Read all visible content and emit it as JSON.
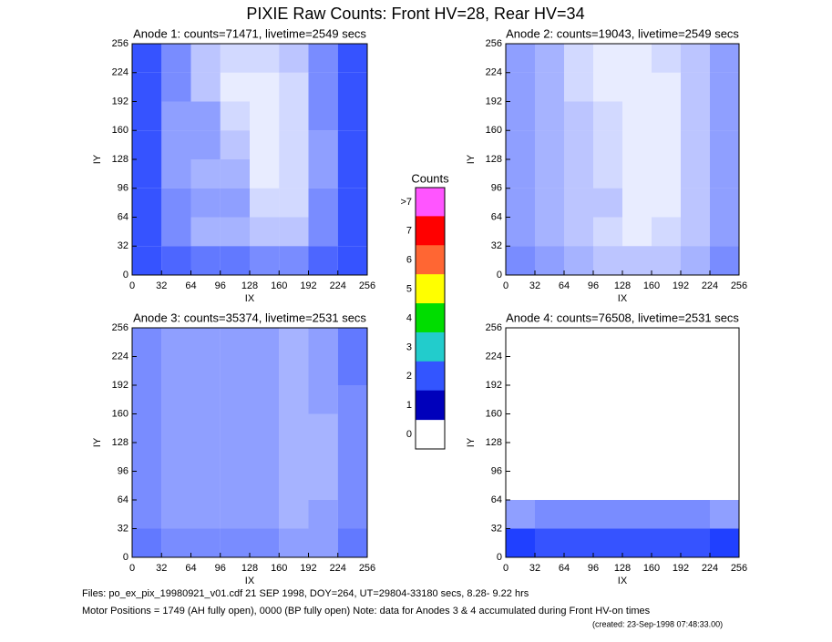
{
  "title": "PIXIE Raw Counts:  Front HV=28, Rear HV=34",
  "colorbar": {
    "title": "Counts",
    "labels": [
      ">7",
      "7",
      "6",
      "5",
      "4",
      "3",
      "2",
      "1",
      "0"
    ],
    "colors": [
      "#ff55ff",
      "#ff0000",
      "#ff6633",
      "#ffff00",
      "#00dd00",
      "#22cccc",
      "#3355ff",
      "#0000bb",
      "#ffffff"
    ]
  },
  "footer": [
    "Files: po_ex_pix_19980921_v01.cdf    21 SEP 1998, DOY=264, UT=29804-33180 secs,  8.28- 9.22 hrs",
    "Motor Positions = 1749 (AH fully open), 0000 (BP fully open)    Note: data for Anodes 3 & 4 accumulated during Front HV-on times",
    "(created: 23-Sep-1998 07:48:33.00)"
  ],
  "chart_data": [
    {
      "type": "heatmap",
      "title": "Anode 1: counts=71471, livetime=2549 secs",
      "xlabel": "IX",
      "ylabel": "IY",
      "xlim": [
        0,
        256
      ],
      "ylim": [
        0,
        256
      ],
      "xticks": [
        0,
        32,
        64,
        96,
        128,
        160,
        192,
        224,
        256
      ],
      "yticks": [
        0,
        32,
        64,
        96,
        128,
        160,
        192,
        224,
        256
      ],
      "color": "#2040ff",
      "density": [
        [
          0.9,
          0.6,
          0.3,
          0.2,
          0.2,
          0.3,
          0.6,
          0.9
        ],
        [
          0.9,
          0.6,
          0.3,
          0.1,
          0.1,
          0.2,
          0.6,
          0.9
        ],
        [
          0.9,
          0.5,
          0.5,
          0.2,
          0.1,
          0.2,
          0.6,
          0.9
        ],
        [
          0.9,
          0.5,
          0.5,
          0.3,
          0.1,
          0.2,
          0.5,
          0.9
        ],
        [
          0.9,
          0.5,
          0.4,
          0.4,
          0.1,
          0.2,
          0.5,
          0.9
        ],
        [
          0.9,
          0.6,
          0.5,
          0.5,
          0.2,
          0.2,
          0.6,
          0.9
        ],
        [
          0.9,
          0.6,
          0.4,
          0.4,
          0.3,
          0.3,
          0.6,
          0.9
        ],
        [
          0.9,
          0.8,
          0.7,
          0.7,
          0.6,
          0.6,
          0.8,
          0.9
        ]
      ]
    },
    {
      "type": "heatmap",
      "title": "Anode 2: counts=19043, livetime=2549 secs",
      "xlabel": "IX",
      "ylabel": "IY",
      "xlim": [
        0,
        256
      ],
      "ylim": [
        0,
        256
      ],
      "xticks": [
        0,
        32,
        64,
        96,
        128,
        160,
        192,
        224,
        256
      ],
      "yticks": [
        0,
        32,
        64,
        96,
        128,
        160,
        192,
        224,
        256
      ],
      "color": "#2040ff",
      "density": [
        [
          0.5,
          0.4,
          0.2,
          0.1,
          0.1,
          0.2,
          0.3,
          0.5
        ],
        [
          0.5,
          0.4,
          0.2,
          0.1,
          0.1,
          0.1,
          0.3,
          0.5
        ],
        [
          0.5,
          0.4,
          0.3,
          0.2,
          0.1,
          0.1,
          0.3,
          0.5
        ],
        [
          0.5,
          0.4,
          0.3,
          0.2,
          0.1,
          0.1,
          0.3,
          0.5
        ],
        [
          0.5,
          0.4,
          0.3,
          0.2,
          0.1,
          0.1,
          0.3,
          0.5
        ],
        [
          0.5,
          0.4,
          0.3,
          0.3,
          0.1,
          0.1,
          0.3,
          0.5
        ],
        [
          0.5,
          0.4,
          0.3,
          0.2,
          0.1,
          0.2,
          0.3,
          0.5
        ],
        [
          0.6,
          0.5,
          0.4,
          0.3,
          0.3,
          0.3,
          0.4,
          0.6
        ]
      ]
    },
    {
      "type": "heatmap",
      "title": "Anode 3: counts=35374, livetime=2531 secs",
      "xlabel": "IX",
      "ylabel": "IY",
      "xlim": [
        0,
        256
      ],
      "ylim": [
        0,
        256
      ],
      "xticks": [
        0,
        32,
        64,
        96,
        128,
        160,
        192,
        224,
        256
      ],
      "yticks": [
        0,
        32,
        64,
        96,
        128,
        160,
        192,
        224,
        256
      ],
      "color": "#2040ff",
      "density": [
        [
          0.6,
          0.5,
          0.5,
          0.5,
          0.5,
          0.4,
          0.5,
          0.7
        ],
        [
          0.6,
          0.5,
          0.5,
          0.5,
          0.5,
          0.4,
          0.5,
          0.7
        ],
        [
          0.6,
          0.5,
          0.5,
          0.5,
          0.5,
          0.4,
          0.5,
          0.6
        ],
        [
          0.6,
          0.5,
          0.5,
          0.5,
          0.5,
          0.4,
          0.4,
          0.6
        ],
        [
          0.6,
          0.5,
          0.5,
          0.5,
          0.5,
          0.4,
          0.4,
          0.6
        ],
        [
          0.6,
          0.5,
          0.5,
          0.5,
          0.5,
          0.4,
          0.4,
          0.6
        ],
        [
          0.6,
          0.5,
          0.5,
          0.5,
          0.5,
          0.4,
          0.5,
          0.6
        ],
        [
          0.7,
          0.6,
          0.6,
          0.6,
          0.6,
          0.5,
          0.5,
          0.7
        ]
      ]
    },
    {
      "type": "heatmap",
      "title": "Anode 4: counts=76508, livetime=2531 secs",
      "xlabel": "IX",
      "ylabel": "IY",
      "xlim": [
        0,
        256
      ],
      "ylim": [
        0,
        256
      ],
      "xticks": [
        0,
        32,
        64,
        96,
        128,
        160,
        192,
        224,
        256
      ],
      "yticks": [
        0,
        32,
        64,
        96,
        128,
        160,
        192,
        224,
        256
      ],
      "color": "#2040ff",
      "density": [
        [
          0,
          0,
          0,
          0,
          0,
          0,
          0,
          0
        ],
        [
          0,
          0,
          0,
          0,
          0,
          0,
          0,
          0
        ],
        [
          0,
          0,
          0,
          0,
          0,
          0,
          0,
          0
        ],
        [
          0,
          0,
          0,
          0,
          0,
          0,
          0,
          0
        ],
        [
          0,
          0,
          0,
          0,
          0,
          0,
          0,
          0
        ],
        [
          0,
          0,
          0,
          0,
          0,
          0,
          0,
          0
        ],
        [
          0.5,
          0.6,
          0.6,
          0.6,
          0.6,
          0.6,
          0.6,
          0.5
        ],
        [
          1,
          0.9,
          0.9,
          0.9,
          0.9,
          0.9,
          0.9,
          1
        ]
      ]
    }
  ]
}
